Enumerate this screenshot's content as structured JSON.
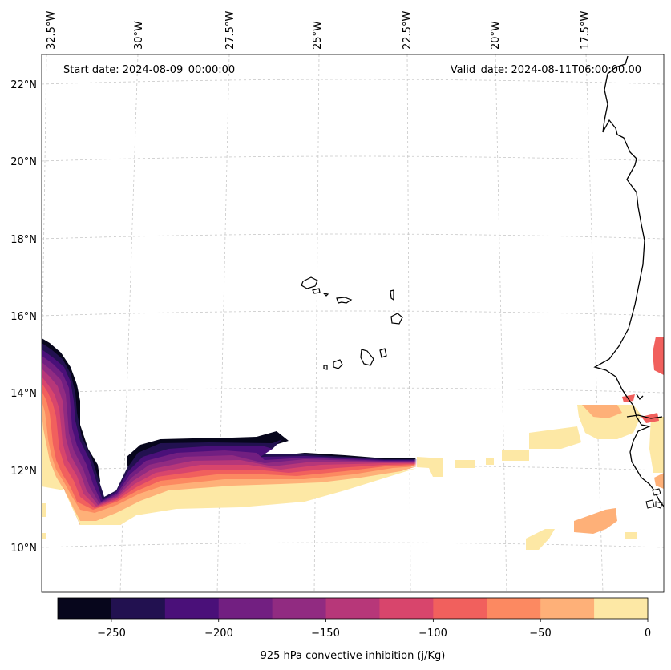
{
  "map": {
    "start_label": "Start date: 2024-08-09_00:00:00",
    "valid_label": "Valid_date: 2024-08-11T06:00:00.00",
    "lon_labels": [
      "32.5°W",
      "30°W",
      "27.5°W",
      "25°W",
      "22.5°W",
      "20°W",
      "17.5°W"
    ],
    "lat_labels": [
      "22°N",
      "20°N",
      "18°N",
      "16°N",
      "14°N",
      "12°N",
      "10°N"
    ]
  },
  "colorbar": {
    "title": "925 hPa convective inhibition (j/Kg)",
    "tick_labels": [
      "−250",
      "−200",
      "−150",
      "−100",
      "−50",
      "0"
    ],
    "levels": [
      -275,
      -250,
      -225,
      -200,
      -175,
      -150,
      -125,
      -100,
      -75,
      -50,
      -25,
      0
    ],
    "colors": [
      "#07061c",
      "#221150",
      "#4a1079",
      "#721f81",
      "#912b81",
      "#b73779",
      "#d8456c",
      "#f1605d",
      "#fc8961",
      "#feb078",
      "#fde8a5"
    ]
  }
}
